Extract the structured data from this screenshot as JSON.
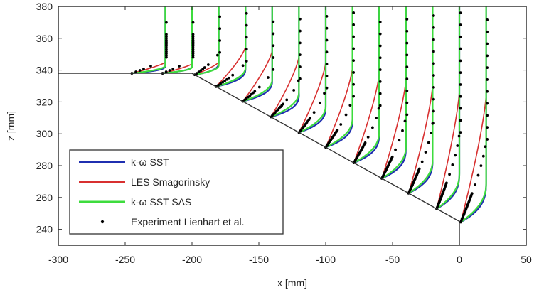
{
  "chart_data": {
    "type": "line",
    "title": "",
    "xlabel": "x [mm]",
    "ylabel": "z [mm]",
    "xlim": [
      -300,
      50
    ],
    "ylim": [
      230,
      380
    ],
    "xticks": [
      -300,
      -250,
      -200,
      -150,
      -100,
      -50,
      0,
      50
    ],
    "yticks": [
      240,
      260,
      280,
      300,
      320,
      340,
      360,
      380
    ],
    "grid": false,
    "legend_position": "bottom-left",
    "colors": {
      "sst": "#1f2fb0",
      "les": "#d83030",
      "sas": "#3ddc3d",
      "exp": "#000000",
      "wall": "#333333"
    },
    "legend": [
      {
        "key": "sst",
        "label": "k-ω SST",
        "style": "line"
      },
      {
        "key": "les",
        "label": "LES Smagorinsky",
        "style": "line"
      },
      {
        "key": "sas",
        "label": "k-ω SST SAS",
        "style": "line"
      },
      {
        "key": "exp",
        "label": "Experiment Lienhart et al.",
        "style": "dot"
      }
    ],
    "wall": [
      [
        -300,
        338
      ],
      [
        -200,
        338
      ],
      [
        0,
        245
      ],
      [
        0,
        230
      ]
    ],
    "profiles": [
      {
        "x_station": -220,
        "x_wall": -245,
        "recovery_height_mm": {
          "sst": 5,
          "les": 7,
          "sas": 5,
          "exp": 10
        }
      },
      {
        "x_station": -200,
        "x_wall": -222,
        "recovery_height_mm": {
          "sst": 5,
          "les": 6,
          "sas": 4,
          "exp": 10
        }
      },
      {
        "x_station": -180,
        "x_wall": -198,
        "recovery_height_mm": {
          "sst": 8,
          "les": 8,
          "sas": 6,
          "exp": 14
        }
      },
      {
        "x_station": -160,
        "x_wall": -182,
        "recovery_height_mm": {
          "sst": 12,
          "les": 25,
          "sas": 12,
          "exp": 16
        }
      },
      {
        "x_station": -140,
        "x_wall": -162,
        "recovery_height_mm": {
          "sst": 14,
          "les": 32,
          "sas": 14,
          "exp": 20
        }
      },
      {
        "x_station": -120,
        "x_wall": -141,
        "recovery_height_mm": {
          "sst": 15,
          "les": 38,
          "sas": 16,
          "exp": 24
        }
      },
      {
        "x_station": -100,
        "x_wall": -120,
        "recovery_height_mm": {
          "sst": 17,
          "les": 44,
          "sas": 17,
          "exp": 28
        }
      },
      {
        "x_station": -80,
        "x_wall": -100,
        "recovery_height_mm": {
          "sst": 18,
          "les": 50,
          "sas": 18,
          "exp": 32
        }
      },
      {
        "x_station": -60,
        "x_wall": -79,
        "recovery_height_mm": {
          "sst": 19,
          "les": 56,
          "sas": 19,
          "exp": 36
        }
      },
      {
        "x_station": -40,
        "x_wall": -58,
        "recovery_height_mm": {
          "sst": 20,
          "les": 62,
          "sas": 20,
          "exp": 40
        }
      },
      {
        "x_station": -20,
        "x_wall": -38,
        "recovery_height_mm": {
          "sst": 22,
          "les": 68,
          "sas": 21,
          "exp": 44
        }
      },
      {
        "x_station": 0,
        "x_wall": -17,
        "recovery_height_mm": {
          "sst": 24,
          "les": 74,
          "sas": 22,
          "exp": 48
        }
      },
      {
        "x_station": 20,
        "x_wall": 1,
        "recovery_height_mm": {
          "sst": 26,
          "les": 80,
          "sas": 24,
          "exp": 52
        }
      }
    ]
  }
}
